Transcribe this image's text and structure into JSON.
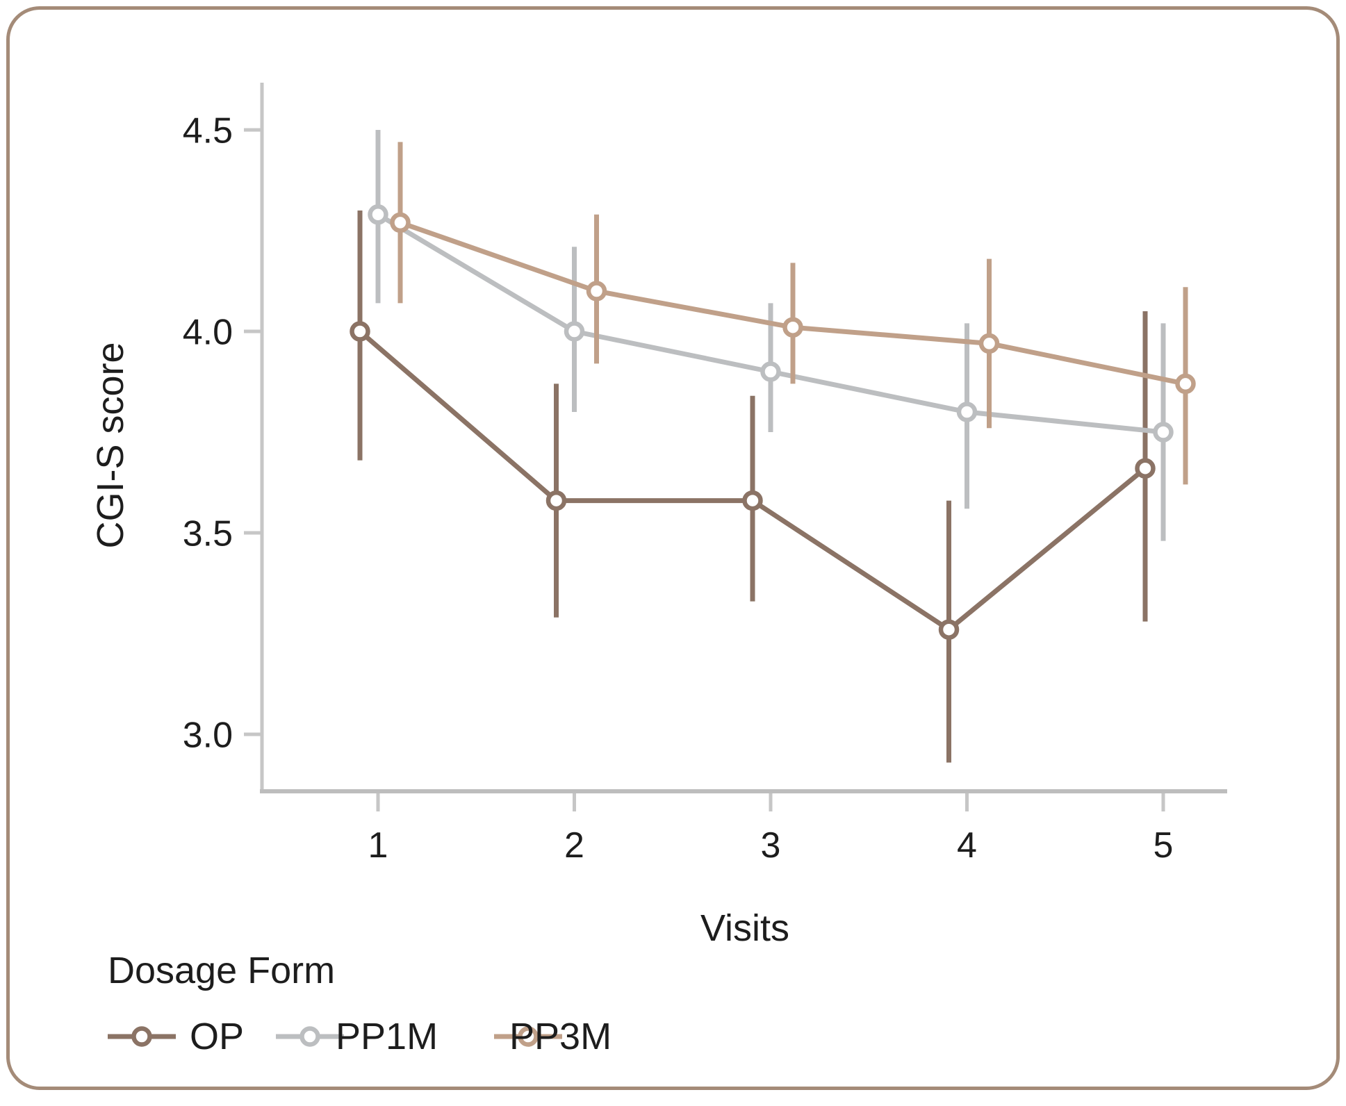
{
  "figure": {
    "legend_title": "Dosage Form",
    "border_color": "#a48b78",
    "background_color": "#ffffff"
  },
  "chart_data": {
    "type": "line",
    "title": "",
    "xlabel": "Visits",
    "ylabel": "CGI-S score",
    "x": [
      1,
      2,
      3,
      4,
      5
    ],
    "x_tick_labels": [
      "1",
      "2",
      "3",
      "4",
      "5"
    ],
    "y_ticks": [
      4.5,
      4.0,
      3.5,
      3.0
    ],
    "y_tick_labels": [
      "4.5",
      "4.0",
      "3.5",
      "3.0"
    ],
    "ylim": [
      2.86,
      4.61
    ],
    "grid": false,
    "error_bars": true,
    "marker": "open-circle",
    "axis_color": "#c6c6c6",
    "legend_position": "bottom-left",
    "series": [
      {
        "name": "OP",
        "color": "#8b7365",
        "values": [
          4.0,
          3.58,
          3.58,
          3.26,
          3.66
        ],
        "ci_low": [
          3.68,
          3.29,
          3.33,
          2.93,
          3.28
        ],
        "ci_high": [
          4.3,
          3.87,
          3.84,
          3.58,
          4.05
        ]
      },
      {
        "name": "PP1M",
        "color": "#bcbec0",
        "values": [
          4.29,
          4.0,
          3.9,
          3.8,
          3.75
        ],
        "ci_low": [
          4.07,
          3.8,
          3.75,
          3.56,
          3.48
        ],
        "ci_high": [
          4.5,
          4.21,
          4.07,
          4.02,
          4.02
        ]
      },
      {
        "name": "PP3M",
        "color": "#c0a089",
        "values": [
          4.27,
          4.1,
          4.01,
          3.97,
          3.87
        ],
        "ci_low": [
          4.07,
          3.92,
          3.87,
          3.76,
          3.62
        ],
        "ci_high": [
          4.47,
          4.29,
          4.17,
          4.18,
          4.11
        ]
      }
    ]
  }
}
